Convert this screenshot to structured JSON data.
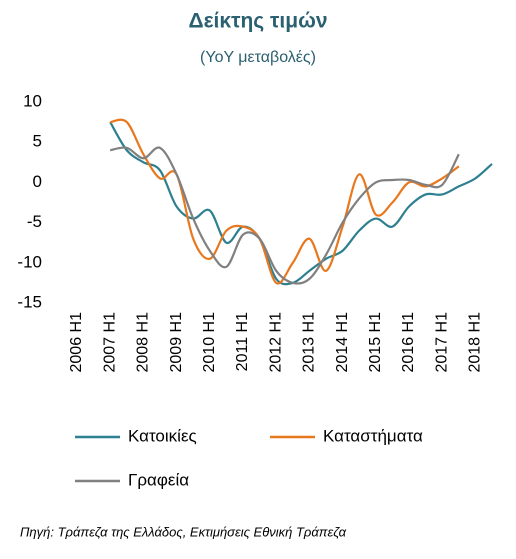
{
  "chart_data": {
    "type": "line",
    "title": "Δείκτης τιμών",
    "subtitle": "(YoY μεταβολές)",
    "source": "Πηγή: Τράπεζα της Ελλάδος, Εκτιμήσεις Εθνική Τράπεζα",
    "categories": [
      "2006 H1",
      null,
      "2007 H1",
      null,
      "2008 H1",
      null,
      "2009 H1",
      null,
      "2010 H1",
      null,
      "2011 H1",
      null,
      "2012 H1",
      null,
      "2013 H1",
      null,
      "2014 H1",
      null,
      "2015 H1",
      null,
      "2016 H1",
      null,
      "2017 H1",
      null,
      "2018 H1",
      null
    ],
    "series": [
      {
        "name": "Κατοικίες",
        "color": "#2e8090",
        "values": [
          null,
          null,
          7.5,
          4,
          2.5,
          1.5,
          -3,
          -4.5,
          -3.5,
          -7.5,
          -5.5,
          -7,
          -12,
          -12.5,
          -11,
          -9.5,
          -8.5,
          -6,
          -4.5,
          -5.5,
          -3,
          -1.5,
          -1.5,
          -0.5,
          0.5,
          2.3
        ]
      },
      {
        "name": "Καταστήματα",
        "color": "#e8781e",
        "values": [
          null,
          null,
          7.5,
          7.5,
          3.5,
          0.5,
          1,
          -7,
          -9.5,
          -6,
          -5.5,
          -7,
          -12.5,
          -10,
          -7,
          -11,
          -5.5,
          1,
          -4,
          -2.5,
          0,
          -0.5,
          0.5,
          2,
          null,
          null
        ]
      },
      {
        "name": "Γραφεία",
        "color": "#808080",
        "values": [
          null,
          null,
          4,
          4.3,
          3,
          4.3,
          1,
          -4.5,
          -8.5,
          -10.5,
          -6.5,
          -7,
          -11,
          -12.5,
          -12,
          -9,
          -5,
          -2,
          0,
          0.3,
          0.3,
          -0.3,
          -0.3,
          3.5,
          null,
          null
        ]
      }
    ],
    "ylim": [
      -15,
      10
    ],
    "yticks": [
      -15,
      -10,
      -5,
      0,
      5,
      10
    ],
    "legend": "bottom"
  }
}
